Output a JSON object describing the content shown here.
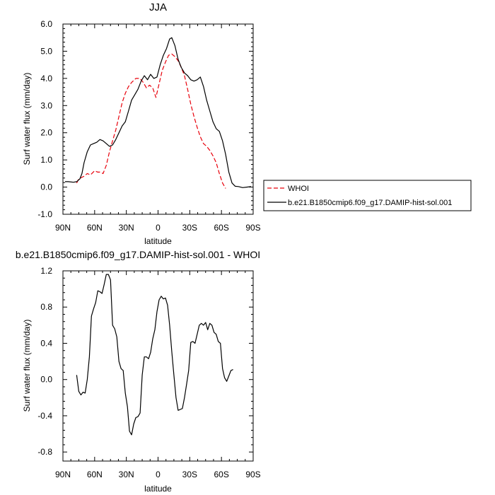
{
  "colors": {
    "whoi": "#e8000b",
    "model": "#000000",
    "axis": "#000000",
    "background": "#ffffff"
  },
  "chart_data": [
    {
      "type": "line",
      "title": "JJA",
      "xlabel": "latitude",
      "ylabel": "Surf water flux (mm/day)",
      "xlim": [
        90,
        -90
      ],
      "ylim": [
        -1.0,
        6.0
      ],
      "xticks": [
        90,
        60,
        30,
        0,
        -30,
        -60,
        -90
      ],
      "xtick_labels": [
        "90N",
        "60N",
        "30N",
        "0",
        "30S",
        "60S",
        "90S"
      ],
      "yticks": [
        -1.0,
        0.0,
        1.0,
        2.0,
        3.0,
        4.0,
        5.0,
        6.0
      ],
      "ytick_labels": [
        "-1.0",
        "0.0",
        "1.0",
        "2.0",
        "3.0",
        "4.0",
        "5.0",
        "6.0"
      ],
      "legend_position": "outside-right",
      "series": [
        {
          "name": "WHOI",
          "style": "dashed",
          "color": "#e8000b",
          "x": [
            77,
            75,
            70,
            67,
            64,
            60,
            57,
            55,
            52,
            49,
            46,
            43,
            40,
            37,
            34,
            31,
            28,
            25,
            21,
            17,
            14,
            11,
            8,
            5,
            2,
            -1,
            -4,
            -7,
            -10,
            -13,
            -16,
            -19,
            -22,
            -25,
            -28,
            -31,
            -34,
            -37,
            -40,
            -43,
            -46,
            -49,
            -52,
            -55,
            -58,
            -61,
            -64,
            -67,
            -70
          ],
          "y": [
            0.15,
            0.3,
            0.4,
            0.5,
            0.45,
            0.6,
            0.55,
            0.55,
            0.5,
            0.8,
            1.3,
            1.7,
            2.1,
            2.6,
            3.1,
            3.45,
            3.7,
            3.85,
            4.0,
            4.0,
            3.85,
            3.65,
            3.75,
            3.65,
            3.3,
            3.8,
            4.3,
            4.6,
            4.85,
            4.9,
            4.8,
            4.65,
            4.4,
            4.1,
            3.6,
            3.05,
            2.6,
            2.2,
            1.85,
            1.6,
            1.5,
            1.35,
            1.15,
            0.9,
            0.5,
            0.15,
            -0.05,
            null,
            null
          ]
        },
        {
          "name": "b.e21.B1850cmip6.f09_g17.DAMIP-hist-sol.001",
          "style": "solid",
          "color": "#000000",
          "x": [
            88,
            85,
            80,
            77,
            74,
            72,
            70,
            67,
            64,
            61,
            58,
            55,
            52,
            49,
            46,
            43,
            40,
            37,
            34,
            31,
            28,
            25,
            22,
            19,
            16,
            13,
            10,
            7,
            4,
            1,
            -2,
            -5,
            -8,
            -11,
            -13,
            -16,
            -19,
            -22,
            -25,
            -28,
            -31,
            -34,
            -37,
            -40,
            -43,
            -46,
            -49,
            -52,
            -55,
            -58,
            -61,
            -64,
            -67,
            -70,
            -73,
            -76,
            -80,
            -84,
            -88
          ],
          "y": [
            0.2,
            0.2,
            0.18,
            0.2,
            0.3,
            0.5,
            0.9,
            1.3,
            1.55,
            1.6,
            1.65,
            1.75,
            1.7,
            1.6,
            1.5,
            1.55,
            1.75,
            2.0,
            2.25,
            2.4,
            2.8,
            3.2,
            3.4,
            3.6,
            3.9,
            4.1,
            3.95,
            4.15,
            4.0,
            4.05,
            4.5,
            4.85,
            5.1,
            5.45,
            5.5,
            5.2,
            4.7,
            4.4,
            4.2,
            4.1,
            3.95,
            3.9,
            3.95,
            4.05,
            3.7,
            3.2,
            2.8,
            2.4,
            2.15,
            2.05,
            1.7,
            1.2,
            0.55,
            0.15,
            0.03,
            0.02,
            -0.02,
            0.0,
            0.02
          ]
        }
      ]
    },
    {
      "type": "line",
      "title": "b.e21.B1850cmip6.f09_g17.DAMIP-hist-sol.001 - WHOI",
      "xlabel": "latitude",
      "ylabel": "Surf water flux (mm/day)",
      "xlim": [
        90,
        -90
      ],
      "ylim": [
        -0.9,
        1.2
      ],
      "xticks": [
        90,
        60,
        30,
        0,
        -30,
        -60,
        -90
      ],
      "xtick_labels": [
        "90N",
        "60N",
        "30N",
        "0",
        "30S",
        "60S",
        "90S"
      ],
      "yticks": [
        -0.8,
        -0.4,
        0.0,
        0.4,
        0.8,
        1.2
      ],
      "ytick_labels": [
        "-0.8",
        "-0.4",
        "0.0",
        "0.4",
        "0.8",
        "1.2"
      ],
      "series": [
        {
          "style": "solid",
          "color": "#000000",
          "x": [
            77,
            75,
            73,
            71,
            69,
            67,
            65,
            63,
            61,
            59,
            57,
            55,
            53,
            51,
            49,
            47,
            45,
            43,
            41,
            39,
            37,
            35,
            33,
            31,
            29,
            27,
            25,
            23,
            21,
            19,
            17,
            15,
            13,
            11,
            9,
            7,
            5,
            3,
            1,
            -1,
            -3,
            -5,
            -7,
            -9,
            -11,
            -13,
            -15,
            -17,
            -19,
            -21,
            -23,
            -25,
            -27,
            -29,
            -31,
            -33,
            -35,
            -37,
            -39,
            -41,
            -43,
            -45,
            -47,
            -49,
            -51,
            -53,
            -55,
            -57,
            -59,
            -61,
            -63,
            -65,
            -67,
            -69,
            -71
          ],
          "y": [
            0.05,
            -0.13,
            -0.17,
            -0.14,
            -0.15,
            0.0,
            0.25,
            0.7,
            0.78,
            0.85,
            0.98,
            0.97,
            0.95,
            1.05,
            1.16,
            1.16,
            1.1,
            0.6,
            0.56,
            0.47,
            0.2,
            0.12,
            0.1,
            -0.15,
            -0.3,
            -0.57,
            -0.61,
            -0.49,
            -0.42,
            -0.41,
            -0.37,
            0.05,
            0.25,
            0.25,
            0.23,
            0.3,
            0.45,
            0.55,
            0.75,
            0.88,
            0.92,
            0.89,
            0.9,
            0.82,
            0.6,
            0.31,
            0.05,
            -0.2,
            -0.34,
            -0.33,
            -0.32,
            -0.2,
            -0.05,
            0.1,
            0.41,
            0.42,
            0.4,
            0.5,
            0.6,
            0.62,
            0.6,
            0.63,
            0.55,
            0.62,
            0.6,
            0.52,
            0.5,
            0.42,
            0.4,
            0.12,
            0.02,
            -0.02,
            0.04,
            0.1,
            0.11
          ]
        }
      ]
    }
  ]
}
